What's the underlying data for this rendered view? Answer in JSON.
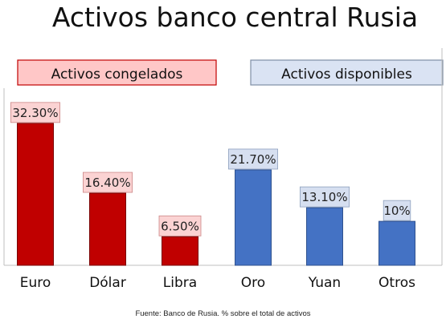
{
  "title": "Activos banco central Rusia",
  "footer": "Fuente: Banco de Rusia. % sobre el total de activos",
  "colors": {
    "frozen_bar": "#c00000",
    "available_bar": "#4472c4",
    "frozen_label_bg": "#fbd3d3",
    "available_label_bg": "#d6dff0",
    "frozen_legend_bg": "#ffc7c7",
    "available_legend_bg": "#dae3f3"
  },
  "chart_data": {
    "type": "bar",
    "title": "Activos banco central Rusia",
    "xlabel": "",
    "ylabel": "",
    "ylim": [
      0,
      33
    ],
    "grid": false,
    "categories": [
      "Euro",
      "Dólar",
      "Libra",
      "Oro",
      "Yuan",
      "Otros"
    ],
    "values": [
      32.3,
      16.4,
      6.5,
      21.7,
      13.1,
      10
    ],
    "data_labels": [
      "32.30%",
      "16.40%",
      "6.50%",
      "21.70%",
      "13.10%",
      "10%"
    ],
    "groups": [
      "frozen",
      "frozen",
      "frozen",
      "available",
      "available",
      "available"
    ],
    "legend": [
      {
        "key": "frozen",
        "label": "Activos congelados"
      },
      {
        "key": "available",
        "label": "Activos disponibles"
      }
    ]
  }
}
